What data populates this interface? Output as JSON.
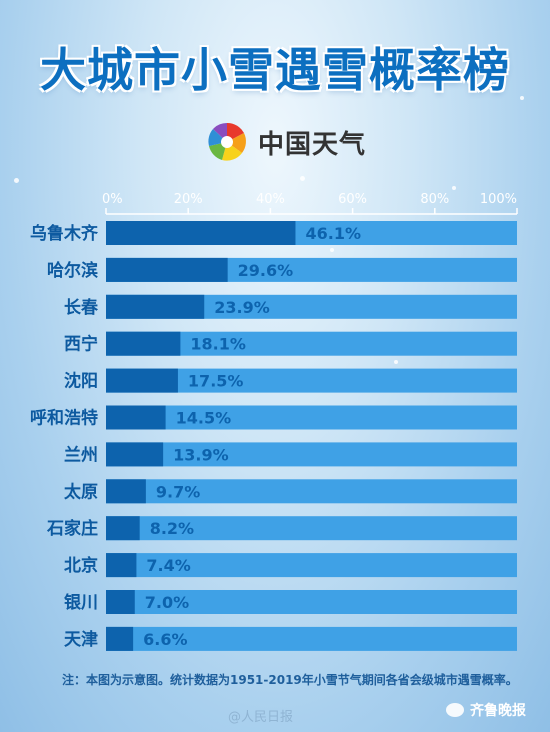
{
  "header": {
    "title": "大城市小雪遇雪概率榜",
    "brand": "中国天气"
  },
  "footer": {
    "note": "注：本图为示意图。统计数据为1951-2019年小雪节气期间各省会级城市遇雪概率。",
    "watermark_weibo": "@人民日报",
    "watermark_source": "齐鲁晚报"
  },
  "chart_data": {
    "type": "bar",
    "orientation": "horizontal",
    "categories": [
      "乌鲁木齐",
      "哈尔滨",
      "长春",
      "西宁",
      "沈阳",
      "呼和浩特",
      "兰州",
      "太原",
      "石家庄",
      "北京",
      "银川",
      "天津"
    ],
    "values": [
      46.1,
      29.6,
      23.9,
      18.1,
      17.5,
      14.5,
      13.9,
      9.7,
      8.2,
      7.4,
      7.0,
      6.6
    ],
    "value_labels": [
      "46.1%",
      "29.6%",
      "23.9%",
      "18.1%",
      "17.5%",
      "14.5%",
      "13.9%",
      "9.7%",
      "8.2%",
      "7.4%",
      "7.0%",
      "6.6%"
    ],
    "x_ticks": [
      "0%",
      "20%",
      "40%",
      "60%",
      "80%",
      "100%"
    ],
    "xlim": [
      0,
      100
    ],
    "axis_position": "top",
    "colors": {
      "bar": "#0d63ad",
      "track": "#3fa1e6",
      "value_text": "#0d63ad",
      "label_text": "#0d5aa0",
      "tick_text": "#ffffff"
    }
  }
}
